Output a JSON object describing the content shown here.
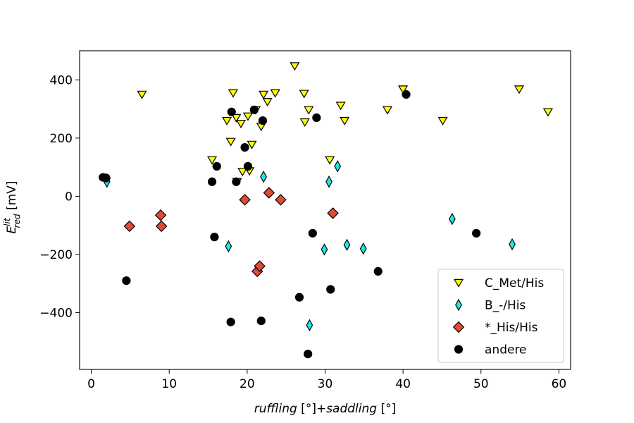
{
  "chart_data": {
    "type": "scatter",
    "title": "",
    "xlabel": {
      "parts": [
        {
          "text": "ruffling",
          "italic": true
        },
        {
          "text": " [°]+",
          "italic": false
        },
        {
          "text": "saddling",
          "italic": true
        },
        {
          "text": " [°]",
          "italic": false
        }
      ]
    },
    "ylabel": {
      "base": "E",
      "sup": "lit",
      "sub": "red",
      "unit": " [mV]"
    },
    "xlim": [
      -1.5,
      61.5
    ],
    "ylim": [
      -595,
      500
    ],
    "xticks": [
      0,
      10,
      20,
      30,
      40,
      50,
      60
    ],
    "yticks": [
      -400,
      -200,
      0,
      200,
      400
    ],
    "grid": false,
    "legend_position": "bottom-right",
    "series": [
      {
        "name": "C_Met/His",
        "marker": "triangle-down",
        "color": "#ffff00",
        "edge": "#000000",
        "points": [
          [
            6.5,
            350
          ],
          [
            15.5,
            125
          ],
          [
            17.4,
            260
          ],
          [
            17.9,
            188
          ],
          [
            18.2,
            355
          ],
          [
            18.6,
            270
          ],
          [
            18.7,
            50
          ],
          [
            19.2,
            250
          ],
          [
            19.4,
            85
          ],
          [
            20.1,
            275
          ],
          [
            20.3,
            87
          ],
          [
            20.6,
            178
          ],
          [
            21.1,
            297
          ],
          [
            21.8,
            240
          ],
          [
            22.1,
            350
          ],
          [
            22.6,
            325
          ],
          [
            23.6,
            355
          ],
          [
            26.1,
            448
          ],
          [
            27.3,
            353
          ],
          [
            27.4,
            255
          ],
          [
            27.9,
            297
          ],
          [
            30.6,
            125
          ],
          [
            32.0,
            312
          ],
          [
            32.5,
            260
          ],
          [
            38.0,
            297
          ],
          [
            40.0,
            368
          ],
          [
            45.1,
            260
          ],
          [
            54.9,
            368
          ],
          [
            58.6,
            290
          ]
        ]
      },
      {
        "name": "B_-/His",
        "marker": "thin-diamond",
        "color": "#22e5e5",
        "edge": "#000000",
        "points": [
          [
            2.0,
            50
          ],
          [
            17.6,
            -172
          ],
          [
            22.1,
            67
          ],
          [
            28.0,
            -443
          ],
          [
            29.9,
            -183
          ],
          [
            30.5,
            50
          ],
          [
            31.6,
            103
          ],
          [
            32.8,
            -167
          ],
          [
            34.9,
            -180
          ],
          [
            46.3,
            -78
          ],
          [
            54.0,
            -165
          ]
        ]
      },
      {
        "name": "*_His/His",
        "marker": "diamond",
        "color": "#e24a33",
        "edge": "#000000",
        "points": [
          [
            4.9,
            -103
          ],
          [
            8.9,
            -65
          ],
          [
            9.0,
            -103
          ],
          [
            19.7,
            -12
          ],
          [
            21.3,
            -258
          ],
          [
            21.6,
            -240
          ],
          [
            22.8,
            12
          ],
          [
            24.3,
            -12
          ],
          [
            31.0,
            -58
          ]
        ]
      },
      {
        "name": "andere",
        "marker": "circle",
        "color": "#000000",
        "edge": "#000000",
        "points": [
          [
            1.5,
            65
          ],
          [
            1.9,
            63
          ],
          [
            4.5,
            -290
          ],
          [
            15.5,
            50
          ],
          [
            15.8,
            -140
          ],
          [
            16.1,
            103
          ],
          [
            17.9,
            -432
          ],
          [
            18.0,
            290
          ],
          [
            18.6,
            50
          ],
          [
            19.7,
            168
          ],
          [
            20.1,
            103
          ],
          [
            20.9,
            297
          ],
          [
            21.8,
            -428
          ],
          [
            22.0,
            260
          ],
          [
            26.7,
            -347
          ],
          [
            27.8,
            -542
          ],
          [
            28.4,
            -127
          ],
          [
            28.9,
            270
          ],
          [
            30.7,
            -320
          ],
          [
            36.8,
            -258
          ],
          [
            40.4,
            350
          ],
          [
            49.4,
            -127
          ]
        ]
      }
    ]
  }
}
